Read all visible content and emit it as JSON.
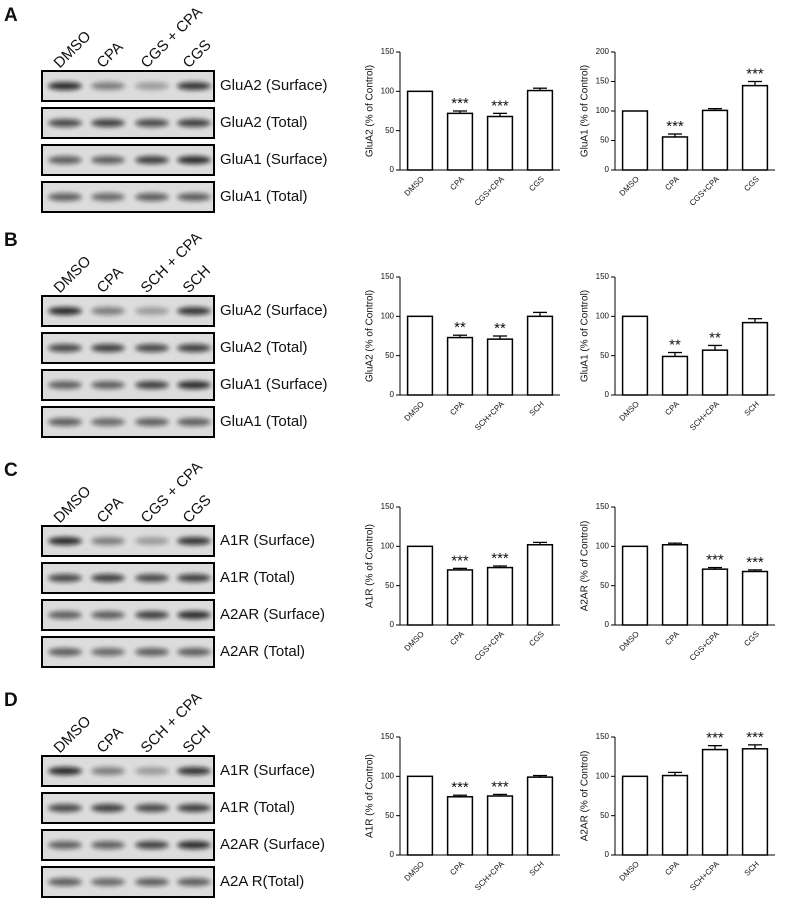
{
  "panels": [
    {
      "letter": "A",
      "lanes": [
        "DMSO",
        "CPA",
        "CGS + CPA",
        "CGS"
      ],
      "blots": [
        "GluA2 (Surface)",
        "GluA2 (Total)",
        "GluA1 (Surface)",
        "GluA1 (Total)"
      ]
    },
    {
      "letter": "B",
      "lanes": [
        "DMSO",
        "CPA",
        "SCH + CPA",
        "SCH"
      ],
      "blots": [
        "GluA2 (Surface)",
        "GluA2 (Total)",
        "GluA1 (Surface)",
        "GluA1 (Total)"
      ]
    },
    {
      "letter": "C",
      "lanes": [
        "DMSO",
        "CPA",
        "CGS + CPA",
        "CGS"
      ],
      "blots": [
        "A1R (Surface)",
        "A1R (Total)",
        "A2AR (Surface)",
        "A2AR (Total)"
      ]
    },
    {
      "letter": "D",
      "lanes": [
        "DMSO",
        "CPA",
        "SCH + CPA",
        "SCH"
      ],
      "blots": [
        "A1R (Surface)",
        "A1R (Total)",
        "A2AR (Surface)",
        "A2A R(Total)"
      ]
    }
  ],
  "chart_data": [
    {
      "type": "bar",
      "ylabel": "GluA2 (% of Control)",
      "categories": [
        "DMSO",
        "CPA",
        "CGS+CPA",
        "CGS"
      ],
      "values": [
        100,
        72,
        68,
        101
      ],
      "errors": [
        0,
        3,
        4,
        3
      ],
      "annotations": [
        null,
        "***",
        "***",
        null
      ],
      "ylim": [
        0,
        150
      ],
      "yticks": [
        0,
        50,
        100,
        150
      ]
    },
    {
      "type": "bar",
      "ylabel": "GluA1 (% of Control)",
      "categories": [
        "DMSO",
        "CPA",
        "CGS+CPA",
        "CGS"
      ],
      "values": [
        100,
        56,
        101,
        143
      ],
      "errors": [
        0,
        5,
        3,
        7
      ],
      "annotations": [
        null,
        "***",
        null,
        "***"
      ],
      "ylim": [
        0,
        200
      ],
      "yticks": [
        0,
        50,
        100,
        150,
        200
      ]
    },
    {
      "type": "bar",
      "ylabel": "GluA2 (% of Control)",
      "categories": [
        "DMSO",
        "CPA",
        "SCH+CPA",
        "SCH"
      ],
      "values": [
        100,
        73,
        71,
        100
      ],
      "errors": [
        0,
        3,
        4,
        5
      ],
      "annotations": [
        null,
        "**",
        "**",
        null
      ],
      "ylim": [
        0,
        150
      ],
      "yticks": [
        0,
        50,
        100,
        150
      ]
    },
    {
      "type": "bar",
      "ylabel": "GluA1 (% of Control)",
      "categories": [
        "DMSO",
        "CPA",
        "SCH+CPA",
        "SCH"
      ],
      "values": [
        100,
        49,
        57,
        92
      ],
      "errors": [
        0,
        5,
        6,
        5
      ],
      "annotations": [
        null,
        "**",
        "**",
        null
      ],
      "ylim": [
        0,
        150
      ],
      "yticks": [
        0,
        50,
        100,
        150
      ]
    },
    {
      "type": "bar",
      "ylabel": "A1R (% of Control)",
      "categories": [
        "DMSO",
        "CPA",
        "CGS+CPA",
        "CGS"
      ],
      "values": [
        100,
        70,
        73,
        102
      ],
      "errors": [
        0,
        2,
        2,
        3
      ],
      "annotations": [
        null,
        "***",
        "***",
        null
      ],
      "ylim": [
        0,
        150
      ],
      "yticks": [
        0,
        50,
        100,
        150
      ]
    },
    {
      "type": "bar",
      "ylabel": "A2AR (% of Control)",
      "categories": [
        "DMSO",
        "CPA",
        "CGS+CPA",
        "CGS"
      ],
      "values": [
        100,
        102,
        71,
        68
      ],
      "errors": [
        0,
        2,
        2,
        2
      ],
      "annotations": [
        null,
        null,
        "***",
        "***"
      ],
      "ylim": [
        0,
        150
      ],
      "yticks": [
        0,
        50,
        100,
        150
      ]
    },
    {
      "type": "bar",
      "ylabel": "A1R (% of Control)",
      "categories": [
        "DMSO",
        "CPA",
        "SCH+CPA",
        "SCH"
      ],
      "values": [
        100,
        74,
        75,
        99
      ],
      "errors": [
        0,
        2,
        2,
        2
      ],
      "annotations": [
        null,
        "***",
        "***",
        null
      ],
      "ylim": [
        0,
        150
      ],
      "yticks": [
        0,
        50,
        100,
        150
      ]
    },
    {
      "type": "bar",
      "ylabel": "A2AR (% of Control)",
      "categories": [
        "DMSO",
        "CPA",
        "SCH+CPA",
        "SCH"
      ],
      "values": [
        100,
        101,
        134,
        135
      ],
      "errors": [
        0,
        4,
        5,
        5
      ],
      "annotations": [
        null,
        null,
        "***",
        "***"
      ],
      "ylim": [
        0,
        150
      ],
      "yticks": [
        0,
        50,
        100,
        150
      ]
    }
  ]
}
